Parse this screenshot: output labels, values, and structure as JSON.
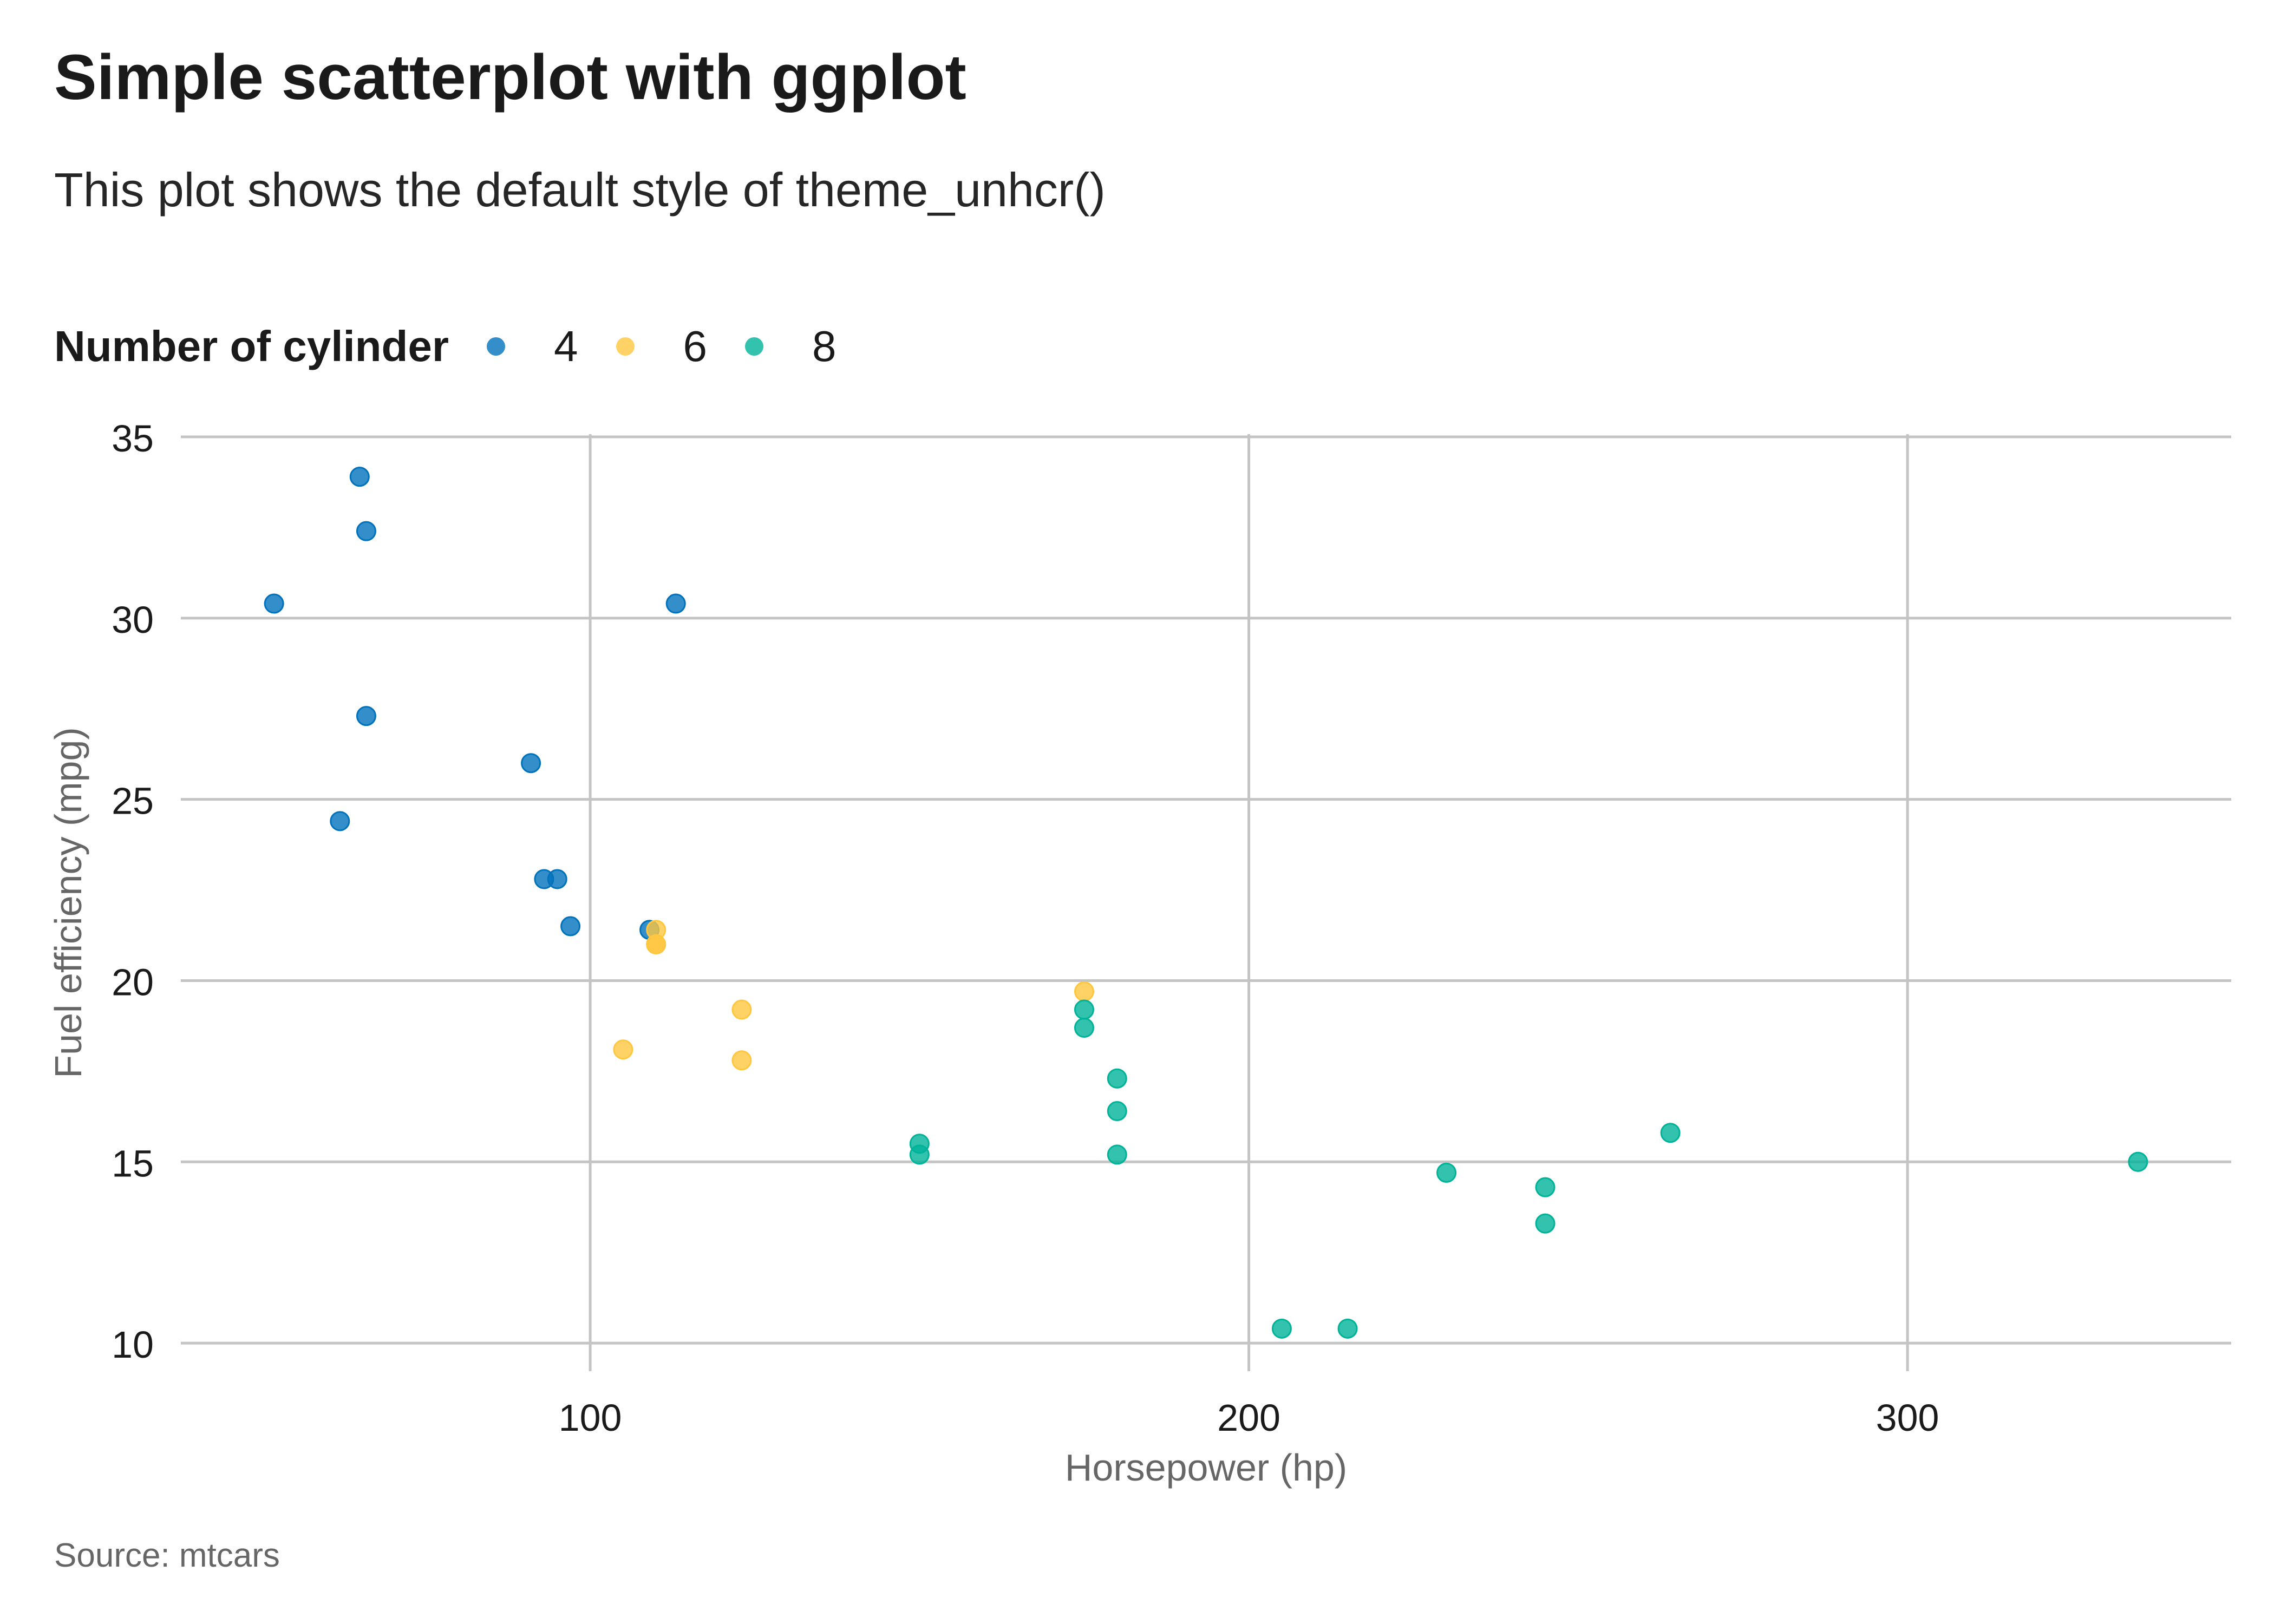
{
  "chart_data": {
    "type": "scatter",
    "title": "Simple scatterplot with ggplot",
    "subtitle": "This plot shows the default style of theme_unhcr()",
    "caption": "Source: mtcars",
    "xlabel": "Horsepower (hp)",
    "ylabel": "Fuel efficiency (mpg)",
    "xlim": [
      37.85,
      349.15
    ],
    "ylim": [
      9.225,
      35.075
    ],
    "xticks": [
      100,
      200,
      300
    ],
    "yticks": [
      10,
      15,
      20,
      25,
      30,
      35
    ],
    "grid": true,
    "legend": {
      "title": "Number of cylinder",
      "placement": "top-left"
    },
    "series": [
      {
        "name": "4",
        "color": "#0072BC",
        "x": [
          93,
          62,
          95,
          66,
          52,
          65,
          97,
          66,
          91,
          113,
          109
        ],
        "y": [
          22.8,
          24.4,
          22.8,
          32.4,
          30.4,
          33.9,
          21.5,
          27.3,
          26.0,
          30.4,
          21.4
        ]
      },
      {
        "name": "6",
        "color": "#FFC740",
        "x": [
          110,
          110,
          110,
          105,
          123,
          123,
          175
        ],
        "y": [
          21.0,
          21.0,
          21.4,
          18.1,
          19.2,
          17.8,
          19.7
        ]
      },
      {
        "name": "8",
        "color": "#00B398",
        "x": [
          175,
          245,
          180,
          180,
          180,
          205,
          215,
          230,
          150,
          150,
          245,
          175,
          264,
          335
        ],
        "y": [
          18.7,
          14.3,
          16.4,
          17.3,
          15.2,
          10.4,
          10.4,
          14.7,
          15.5,
          15.2,
          13.3,
          19.2,
          15.8,
          15.0
        ]
      }
    ]
  }
}
